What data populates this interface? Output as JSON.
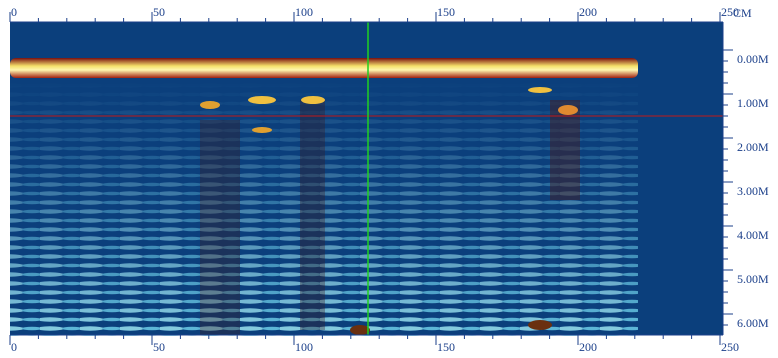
{
  "top_axis": {
    "ticks": [
      0,
      50,
      100,
      150,
      200,
      250
    ],
    "unit": "CM"
  },
  "bottom_axis": {
    "ticks": [
      0,
      50,
      100,
      150,
      200,
      250
    ]
  },
  "depth_axis": {
    "ticks": [
      {
        "value": 0,
        "label": "0.00M"
      },
      {
        "value": 1,
        "label": "1.00M"
      },
      {
        "value": 2,
        "label": "2.00M"
      },
      {
        "value": 3,
        "label": "3.00M"
      },
      {
        "value": 4,
        "label": "4.00M"
      },
      {
        "value": 5,
        "label": "5.00M"
      },
      {
        "value": 6,
        "label": "6.00M"
      }
    ]
  }
}
